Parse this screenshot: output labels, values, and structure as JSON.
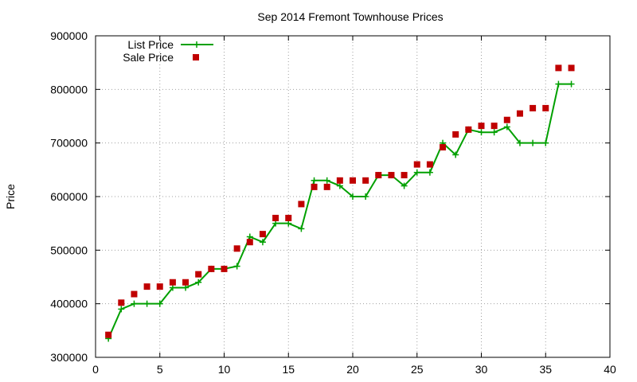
{
  "chart_data": {
    "type": "line",
    "title": "Sep 2014 Fremont Townhouse Prices",
    "xlabel": "",
    "ylabel": "Price",
    "xlim": [
      0,
      40
    ],
    "ylim": [
      300000,
      900000
    ],
    "xticks": [
      0,
      5,
      10,
      15,
      20,
      25,
      30,
      35,
      40
    ],
    "yticks": [
      300000,
      400000,
      500000,
      600000,
      700000,
      800000,
      900000
    ],
    "grid": true,
    "legend_position": "top-left",
    "series": [
      {
        "name": "List Price",
        "style": "linespoints",
        "marker": "plus",
        "color": "#00a000",
        "x": [
          1,
          2,
          3,
          4,
          5,
          6,
          7,
          8,
          9,
          10,
          11,
          12,
          13,
          14,
          15,
          16,
          17,
          18,
          19,
          20,
          21,
          22,
          23,
          24,
          25,
          26,
          27,
          28,
          29,
          30,
          31,
          32,
          33,
          34,
          35,
          36,
          37
        ],
        "y": [
          335000,
          390000,
          400000,
          400000,
          400000,
          430000,
          430000,
          440000,
          465000,
          465000,
          470000,
          525000,
          515000,
          550000,
          550000,
          540000,
          630000,
          630000,
          620000,
          600000,
          600000,
          640000,
          640000,
          620000,
          645000,
          645000,
          700000,
          678000,
          725000,
          720000,
          720000,
          730000,
          700000,
          700000,
          700000,
          810000,
          810000
        ]
      },
      {
        "name": "Sale Price",
        "style": "points",
        "marker": "square",
        "color": "#c00000",
        "x": [
          1,
          2,
          3,
          4,
          5,
          6,
          7,
          8,
          9,
          10,
          11,
          12,
          13,
          14,
          15,
          16,
          17,
          18,
          19,
          20,
          21,
          22,
          23,
          24,
          25,
          26,
          27,
          28,
          29,
          30,
          31,
          32,
          33,
          34,
          35,
          36,
          37
        ],
        "y": [
          342000,
          402000,
          418000,
          432000,
          432000,
          440000,
          440000,
          455000,
          465000,
          465000,
          503000,
          515000,
          530000,
          560000,
          560000,
          586000,
          618000,
          618000,
          630000,
          630000,
          630000,
          640000,
          640000,
          640000,
          660000,
          660000,
          692000,
          716000,
          725000,
          732000,
          732000,
          743000,
          755000,
          765000,
          765000,
          840000,
          840000
        ]
      }
    ]
  }
}
